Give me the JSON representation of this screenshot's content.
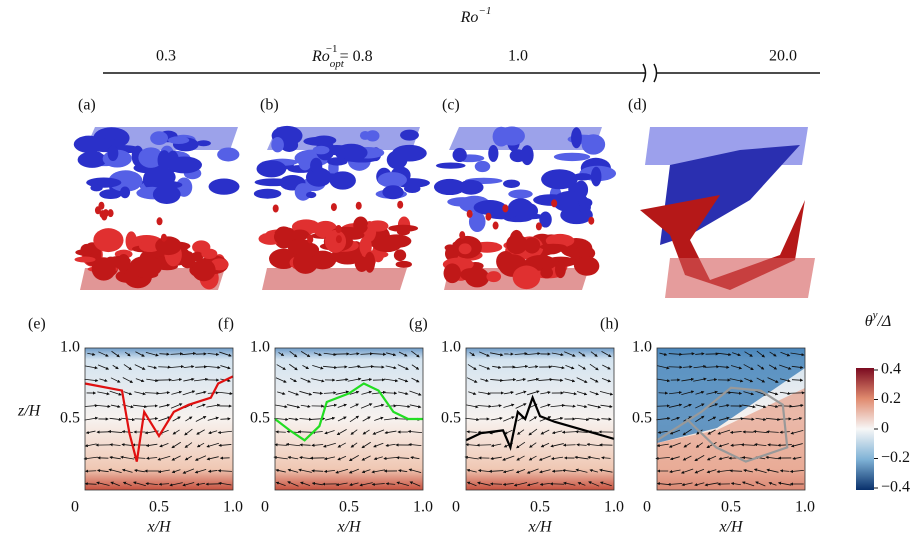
{
  "header": {
    "axis_label": {
      "base": "Ro",
      "sup": "−1"
    },
    "ticks": [
      "0.3",
      {
        "base": "Ro",
        "sub": "opt",
        "sup": "−1",
        "text": "= 0.8"
      },
      "1.0",
      "20.0"
    ]
  },
  "panels_3d": [
    "(a)",
    "(b)",
    "(c)",
    "(d)"
  ],
  "panels_2d": {
    "labels": [
      "(e)",
      "(f)",
      "(g)",
      "(h)"
    ],
    "y_label": "z/H",
    "x_label": "x/H",
    "y_ticks": [
      "1.0",
      "0.5"
    ],
    "x_ticks": [
      "0",
      "0.5",
      "1.0"
    ]
  },
  "colorbar": {
    "title": "θ",
    "title_sup": "y",
    "title_rest": "/Δ",
    "ticks": [
      "0.4",
      "0.2",
      "0",
      "−0.2",
      "−0.4"
    ]
  }
}
